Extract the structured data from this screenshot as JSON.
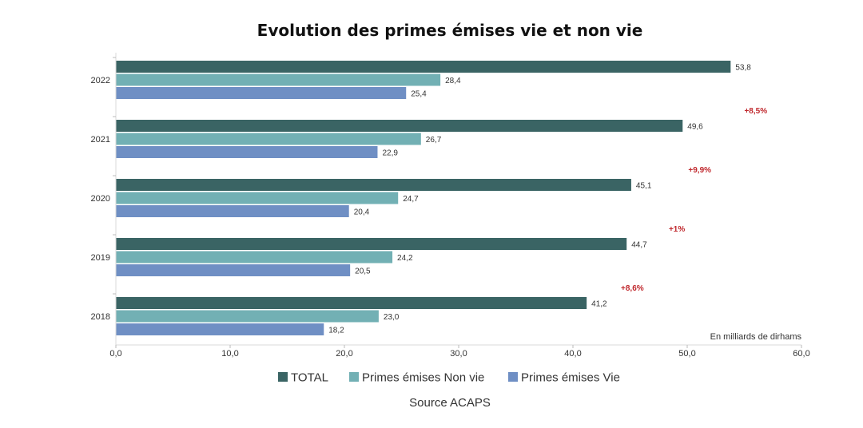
{
  "chart_data": {
    "type": "bar",
    "orientation": "horizontal",
    "title": "Evolution des primes émises vie et non vie",
    "categories": [
      "2022",
      "2021",
      "2020",
      "2019",
      "2018"
    ],
    "series": [
      {
        "name": "TOTAL",
        "color": "#3a6464",
        "values": [
          53.8,
          49.6,
          45.1,
          44.7,
          41.2
        ],
        "labels": [
          "53,8",
          "49,6",
          "45,1",
          "44,7",
          "41,2"
        ]
      },
      {
        "name": "Primes émises Non vie",
        "color": "#72b0b4",
        "values": [
          28.4,
          26.7,
          24.7,
          24.2,
          23.0
        ],
        "labels": [
          "28,4",
          "26,7",
          "24,7",
          "24,2",
          "23,0"
        ]
      },
      {
        "name": "Primes émises Vie",
        "color": "#6f8fc4",
        "values": [
          25.4,
          22.9,
          20.4,
          20.5,
          18.2
        ],
        "labels": [
          "25,4",
          "22,9",
          "20,4",
          "20,5",
          "18,2"
        ]
      }
    ],
    "x_ticks": [
      "0,0",
      "10,0",
      "20,0",
      "30,0",
      "40,0",
      "50,0",
      "60,0"
    ],
    "xlim": [
      0,
      60
    ],
    "annotations": [
      {
        "text": "+8,5%",
        "between": [
          "2022",
          "2021"
        ],
        "x": 56.0
      },
      {
        "text": "+9,9%",
        "between": [
          "2021",
          "2020"
        ],
        "x": 51.1
      },
      {
        "text": "+1%",
        "between": [
          "2020",
          "2019"
        ],
        "x": 49.1
      },
      {
        "text": "+8,6%",
        "between": [
          "2019",
          "2018"
        ],
        "x": 45.2
      }
    ],
    "unit_note": "En milliards de dirhams",
    "source": "Source ACAPS",
    "legend_position": "bottom"
  }
}
